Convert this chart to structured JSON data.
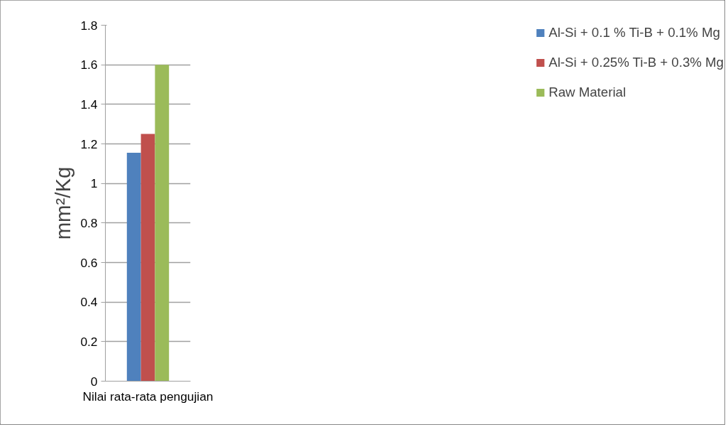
{
  "chart_data": {
    "type": "bar",
    "ylabel": "mm²/Kg",
    "categories": [
      "Nilai rata-rata pengujian"
    ],
    "series": [
      {
        "name": "Al-Si + 0.1 % Ti-B + 0.1% Mg",
        "color": "#4f81bd",
        "values": [
          1.155
        ]
      },
      {
        "name": "Al-Si + 0.25% Ti-B + 0.3% Mg",
        "color": "#c0504d",
        "values": [
          1.25
        ]
      },
      {
        "name": "Raw Material",
        "color": "#9bbb59",
        "values": [
          1.6
        ]
      }
    ],
    "ylim": [
      0,
      1.8
    ],
    "yticks": [
      0,
      0.2,
      0.4,
      0.6,
      0.8,
      1,
      1.2,
      1.4,
      1.6,
      1.8
    ],
    "grid": "y",
    "legend": "right"
  }
}
